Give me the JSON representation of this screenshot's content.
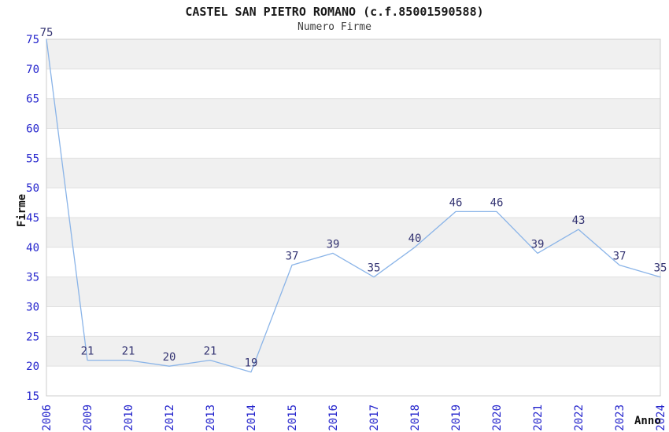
{
  "chart_data": {
    "type": "line",
    "title": "CASTEL SAN PIETRO ROMANO (c.f.85001590588)",
    "subtitle": "Numero Firme",
    "xlabel": "Anno",
    "ylabel": "Firme",
    "categories": [
      "2006",
      "2009",
      "2010",
      "2012",
      "2013",
      "2014",
      "2015",
      "2016",
      "2017",
      "2018",
      "2019",
      "2020",
      "2021",
      "2022",
      "2023",
      "2024"
    ],
    "values": [
      75,
      21,
      21,
      20,
      21,
      19,
      37,
      39,
      35,
      40,
      46,
      46,
      39,
      43,
      37,
      35
    ],
    "ylim": [
      15,
      75
    ],
    "ytick_step": 5,
    "yticks": [
      15,
      20,
      25,
      30,
      35,
      40,
      45,
      50,
      55,
      60,
      65,
      70,
      75
    ],
    "grid": "horizontal-alternating-bands",
    "legend": "none",
    "data_labels_visible": true,
    "colors": {
      "line": "#8ab4e8",
      "tick_label": "#2323cc",
      "data_label": "#333372",
      "band_fill": "#f0f0f0",
      "gridline": "#e0e0e0",
      "plot_border": "#cccccc",
      "title_text": "#1a1a1a",
      "background": "#ffffff"
    }
  }
}
